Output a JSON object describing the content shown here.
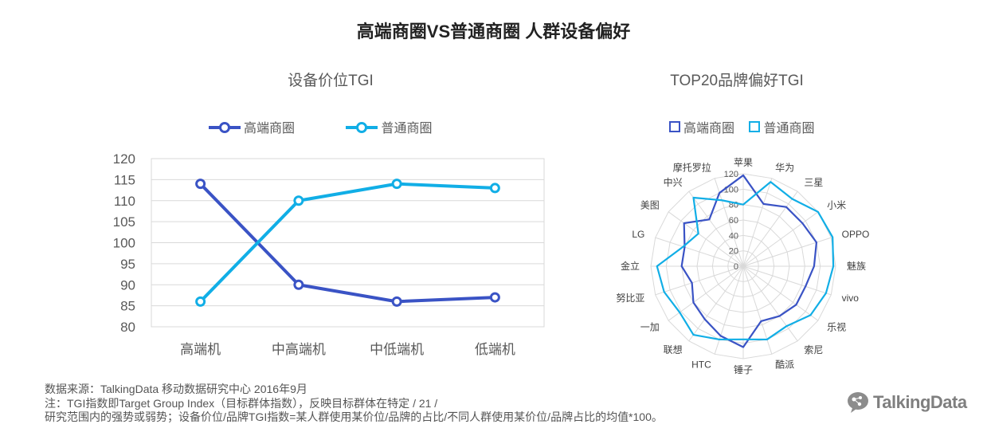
{
  "page": {
    "title": "高端商圈VS普通商圈 人群设备偏好",
    "footer_lines": [
      "数据来源：TalkingData 移动数据研究中心  2016年9月",
      "注：TGI指数即Target Group Index（目标群体指数），反映目标群体在特定     /  21  /",
      "研究范围内的强势或弱势；设备价位/品牌TGI指数=某人群使用某价位/品牌的占比/不同人群使用某价位/品牌占比的均值*100。"
    ],
    "logo_text": "TalkingData"
  },
  "chart_data": [
    {
      "type": "line",
      "title": "设备价位TGI",
      "categories": [
        "高端机",
        "中高端机",
        "中低端机",
        "低端机"
      ],
      "series": [
        {
          "name": "高端商圈",
          "values": [
            114,
            90,
            86,
            87
          ],
          "color": "#3a53c5"
        },
        {
          "name": "普通商圈",
          "values": [
            86,
            110,
            114,
            113
          ],
          "color": "#11aee6"
        }
      ],
      "ylim": [
        80,
        120
      ],
      "yticks": [
        80,
        85,
        90,
        95,
        100,
        105,
        110,
        115,
        120
      ],
      "grid": true,
      "legend": "top"
    },
    {
      "type": "radar",
      "title": "TOP20品牌偏好TGI",
      "categories": [
        "苹果",
        "华为",
        "三星",
        "小米",
        "OPPO",
        "魅族",
        "vivo",
        "乐视",
        "索尼",
        "酷派",
        "锤子",
        "HTC",
        "联想",
        "一加",
        "努比亚",
        "金立",
        "LG",
        "美图",
        "中兴",
        "摩托罗拉"
      ],
      "series": [
        {
          "name": "高端商圈",
          "values": [
            118,
            85,
            95,
            95,
            100,
            92,
            85,
            85,
            80,
            75,
            105,
            95,
            85,
            80,
            70,
            80,
            80,
            95,
            75,
            100
          ],
          "color": "#3a53c5"
        },
        {
          "name": "普通商圈",
          "values": [
            80,
            115,
            108,
            120,
            122,
            117,
            113,
            108,
            96,
            100,
            95,
            100,
            110,
            102,
            108,
            112,
            82,
            72,
            110,
            90
          ],
          "color": "#11aee6"
        }
      ],
      "rlim": [
        0,
        120
      ],
      "rticks": [
        0,
        20,
        40,
        60,
        80,
        100,
        120
      ],
      "grid": true,
      "legend": "top"
    }
  ]
}
